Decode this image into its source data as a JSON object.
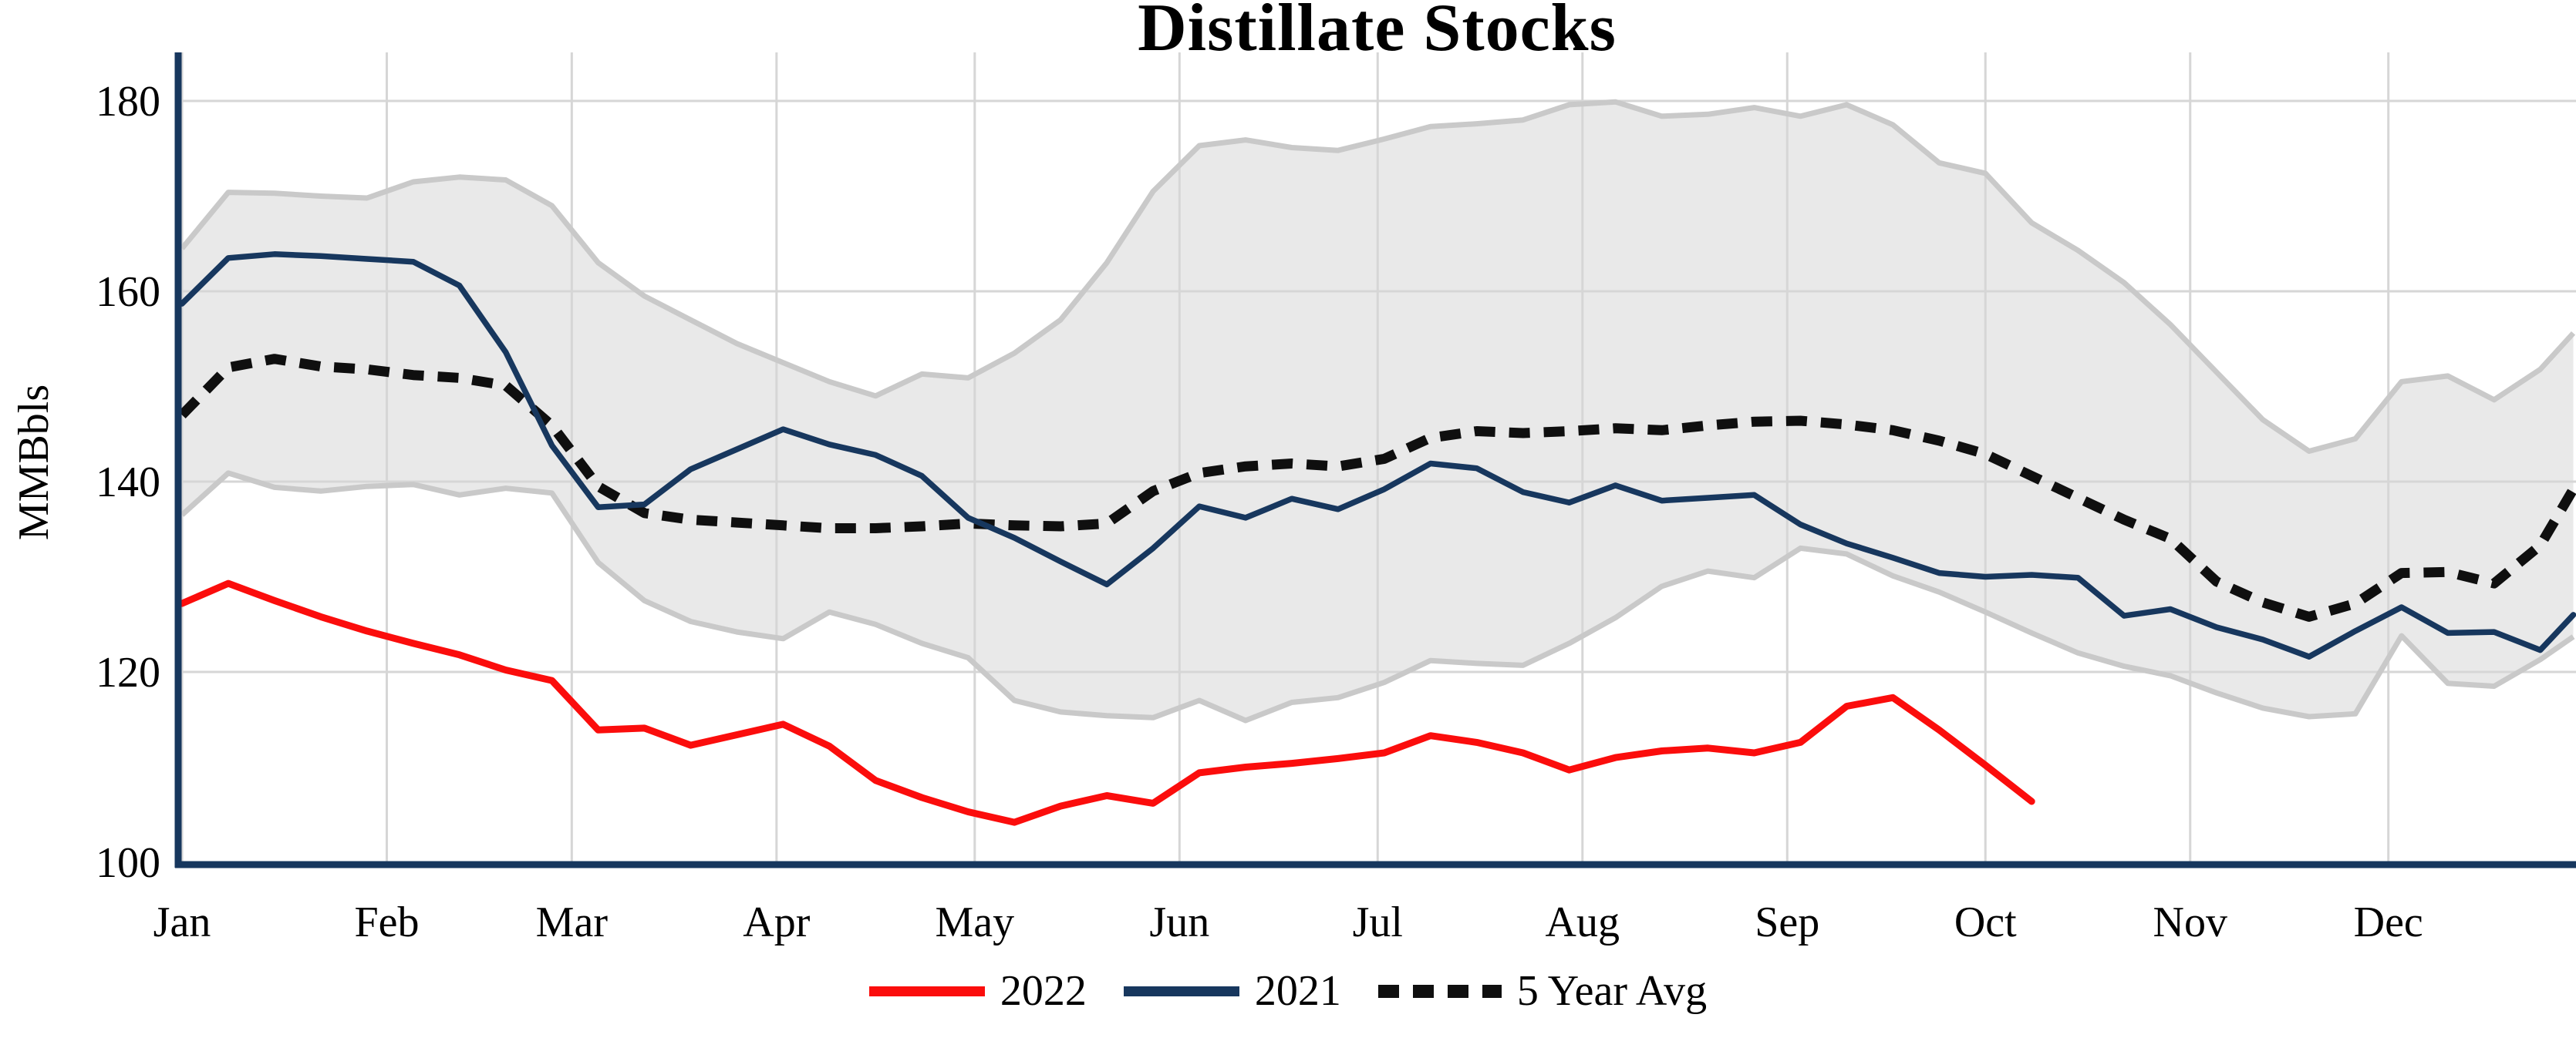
{
  "title": "Distillate Stocks",
  "y_axis": {
    "label": "MMBbls",
    "tick_values": [
      180,
      160,
      140,
      120,
      100
    ]
  },
  "x_axis": {
    "months": [
      "Jan",
      "Feb",
      "Mar",
      "Apr",
      "May",
      "Jun",
      "Jul",
      "Aug",
      "Sep",
      "Oct",
      "Nov",
      "Dec"
    ]
  },
  "legend": [
    {
      "label": "2022",
      "color": "#fb0d0c",
      "style": "solid"
    },
    {
      "label": "2021",
      "color": "#17375e",
      "style": "solid"
    },
    {
      "label": "5 Year Avg",
      "color": "#0f0f0f",
      "style": "dotted"
    }
  ],
  "colors": {
    "line_2022": "#fb0d0c",
    "line_2021": "#17375e",
    "line_avg": "#0f0f0f",
    "band_fill": "#e9e9e9",
    "band_edge": "#c9c9c9",
    "gridline": "#d6d6d6",
    "axis": "#17375e",
    "text": "#000000"
  },
  "chart_data": {
    "type": "line",
    "title": "Distillate Stocks",
    "xlabel": "",
    "ylabel": "MMBbls",
    "ylim": [
      100,
      185
    ],
    "grid": true,
    "legend_position": "bottom-center",
    "x_unit": "day_of_year",
    "month_start_days": [
      0,
      31,
      59,
      90,
      120,
      151,
      181,
      212,
      243,
      273,
      304,
      334
    ],
    "band": {
      "name": "5 Year Range",
      "x": [
        1,
        8,
        15,
        22,
        29,
        36,
        43,
        50,
        57,
        64,
        71,
        78,
        85,
        92,
        99,
        106,
        113,
        120,
        127,
        134,
        141,
        148,
        155,
        162,
        169,
        176,
        183,
        190,
        197,
        204,
        211,
        218,
        225,
        232,
        239,
        246,
        253,
        260,
        267,
        274,
        281,
        288,
        295,
        302,
        309,
        316,
        323,
        330,
        337,
        344,
        351,
        358,
        363
      ],
      "upper": [
        164.5,
        170.4,
        170.3,
        170.0,
        169.8,
        171.5,
        172.0,
        171.7,
        169.0,
        163.0,
        159.5,
        157.0,
        154.5,
        152.5,
        150.5,
        149.0,
        151.3,
        150.9,
        153.5,
        157.0,
        163.0,
        170.5,
        175.3,
        175.9,
        175.1,
        174.8,
        176.0,
        177.3,
        177.6,
        178.0,
        179.6,
        179.9,
        178.4,
        178.6,
        179.3,
        178.4,
        179.6,
        177.5,
        173.5,
        172.4,
        167.2,
        164.3,
        160.9,
        156.5,
        151.5,
        146.5,
        143.2,
        144.5,
        150.5,
        151.1,
        148.6,
        151.8,
        155.6
      ],
      "lower": [
        136.5,
        140.9,
        139.4,
        139.0,
        139.5,
        139.7,
        138.6,
        139.3,
        138.8,
        131.5,
        127.5,
        125.3,
        124.2,
        123.5,
        126.3,
        125.0,
        123.0,
        121.5,
        117.0,
        115.8,
        115.4,
        115.2,
        117.0,
        114.9,
        116.8,
        117.3,
        118.9,
        121.2,
        120.9,
        120.7,
        123.0,
        125.7,
        129.0,
        130.6,
        129.9,
        133.0,
        132.4,
        130.1,
        128.4,
        126.3,
        124.1,
        122.0,
        120.6,
        119.6,
        117.8,
        116.2,
        115.3,
        115.6,
        123.8,
        118.8,
        118.5,
        121.3,
        123.7
      ]
    },
    "series": [
      {
        "name": "5 Year Avg",
        "style": "dotted",
        "color": "#0f0f0f",
        "x": [
          1,
          8,
          15,
          22,
          29,
          36,
          43,
          50,
          57,
          64,
          71,
          78,
          85,
          92,
          99,
          106,
          113,
          120,
          127,
          134,
          141,
          148,
          155,
          162,
          169,
          176,
          183,
          190,
          197,
          204,
          211,
          218,
          225,
          232,
          239,
          246,
          253,
          260,
          267,
          274,
          281,
          288,
          295,
          302,
          309,
          316,
          323,
          330,
          337,
          344,
          351,
          358,
          363
        ],
        "values": [
          147.0,
          152.0,
          152.9,
          152.1,
          151.8,
          151.2,
          150.9,
          150.1,
          145.9,
          139.5,
          136.7,
          136.0,
          135.7,
          135.4,
          135.1,
          135.1,
          135.3,
          135.6,
          135.4,
          135.3,
          135.6,
          139.0,
          140.9,
          141.6,
          141.9,
          141.6,
          142.4,
          144.6,
          145.3,
          145.1,
          145.3,
          145.6,
          145.4,
          145.9,
          146.3,
          146.4,
          146.0,
          145.4,
          144.3,
          142.9,
          140.6,
          138.3,
          136.0,
          134.0,
          129.5,
          127.3,
          125.8,
          127.2,
          130.4,
          130.5,
          129.3,
          133.3,
          139.2
        ]
      },
      {
        "name": "2021",
        "style": "solid",
        "color": "#17375e",
        "x": [
          1,
          8,
          15,
          22,
          29,
          36,
          43,
          50,
          57,
          64,
          71,
          78,
          85,
          92,
          99,
          106,
          113,
          120,
          127,
          134,
          141,
          148,
          155,
          162,
          169,
          176,
          183,
          190,
          197,
          204,
          211,
          218,
          225,
          232,
          239,
          246,
          253,
          260,
          267,
          274,
          281,
          288,
          295,
          302,
          309,
          316,
          323,
          330,
          337,
          344,
          351,
          358,
          363
        ],
        "values": [
          158.7,
          163.5,
          163.9,
          163.7,
          163.4,
          163.1,
          160.6,
          153.6,
          143.8,
          137.3,
          137.6,
          141.3,
          143.4,
          145.5,
          143.9,
          142.8,
          140.6,
          136.2,
          134.1,
          131.6,
          129.2,
          133.0,
          137.4,
          136.2,
          138.2,
          137.1,
          139.2,
          141.9,
          141.4,
          138.9,
          137.8,
          139.6,
          138.0,
          138.3,
          138.6,
          135.5,
          133.5,
          132.0,
          130.4,
          130.0,
          130.2,
          129.9,
          125.9,
          126.6,
          124.7,
          123.4,
          121.6,
          124.3,
          126.8,
          124.1,
          124.2,
          122.3,
          126.0
        ]
      },
      {
        "name": "2022",
        "style": "solid",
        "color": "#fb0d0c",
        "x": [
          1,
          8,
          15,
          22,
          29,
          36,
          43,
          50,
          57,
          64,
          71,
          78,
          85,
          92,
          99,
          106,
          113,
          120,
          127,
          134,
          141,
          148,
          155,
          162,
          169,
          176,
          183,
          190,
          197,
          204,
          211,
          218,
          225,
          232,
          239,
          246,
          253,
          260,
          267,
          274,
          281
        ],
        "values": [
          127.2,
          129.3,
          127.5,
          125.8,
          124.3,
          123.0,
          121.8,
          120.2,
          119.1,
          113.9,
          114.1,
          112.3,
          113.4,
          114.5,
          112.2,
          108.6,
          106.8,
          105.3,
          104.2,
          105.9,
          107.0,
          106.2,
          109.4,
          110.0,
          110.4,
          110.9,
          111.5,
          113.3,
          112.6,
          111.5,
          109.7,
          111.0,
          111.7,
          112.0,
          111.5,
          112.6,
          116.4,
          117.3,
          113.9,
          110.2,
          106.4
        ]
      }
    ]
  }
}
